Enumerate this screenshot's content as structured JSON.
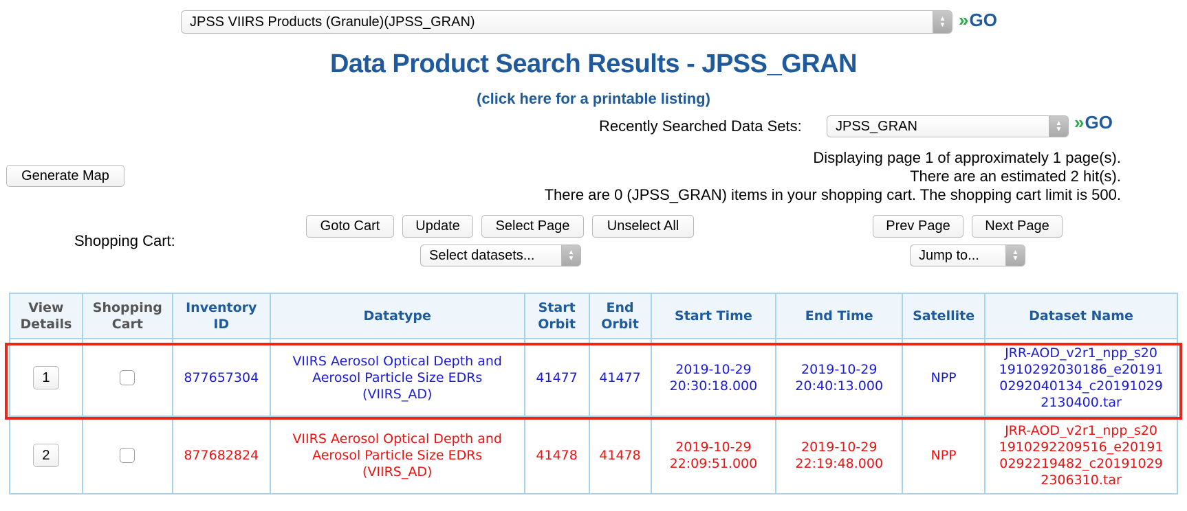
{
  "product_select": {
    "value": "JPSS VIIRS Products (Granule)(JPSS_GRAN)"
  },
  "go_label": "GO",
  "page_title": "Data Product Search Results - JPSS_GRAN",
  "printable_link": "(click here for a printable listing)",
  "recent": {
    "label": "Recently Searched Data Sets:",
    "value": "JPSS_GRAN"
  },
  "generate_map": "Generate Map",
  "info": {
    "line1": "Displaying page 1 of approximately 1 page(s).",
    "line2": "There are an estimated 2 hit(s).",
    "line3": "There are 0 (JPSS_GRAN) items in your shopping cart. The shopping cart limit is 500."
  },
  "cart": {
    "label": "Shopping Cart:",
    "goto": "Goto Cart",
    "update": "Update",
    "select_page": "Select Page",
    "unselect_all": "Unselect All",
    "select_datasets": "Select datasets..."
  },
  "paging": {
    "prev": "Prev Page",
    "next": "Next Page",
    "jump": "Jump to..."
  },
  "table": {
    "headers": {
      "view_details_1": "View",
      "view_details_2": "Details",
      "shopping_cart_1": "Shopping",
      "shopping_cart_2": "Cart",
      "inventory_id_1": "Inventory",
      "inventory_id_2": "ID",
      "datatype": "Datatype",
      "start_orbit_1": "Start",
      "start_orbit_2": "Orbit",
      "end_orbit_1": "End",
      "end_orbit_2": "Orbit",
      "start_time": "Start Time",
      "end_time": "End Time",
      "satellite": "Satellite",
      "dataset_name": "Dataset Name"
    },
    "rows": [
      {
        "num": "1",
        "inventory_id": "877657304",
        "datatype_1": "VIIRS Aerosol Optical Depth and",
        "datatype_2": "Aerosol Particle Size EDRs",
        "datatype_3": "(VIIRS_AD)",
        "start_orbit": "41477",
        "end_orbit": "41477",
        "start_date": "2019-10-29",
        "start_clock": "20:30:18.000",
        "end_date": "2019-10-29",
        "end_clock": "20:40:13.000",
        "satellite": "NPP",
        "dataset_1": "JRR-AOD_v2r1_npp_s20",
        "dataset_2": "1910292030186_e20191",
        "dataset_3": "0292040134_c20191029",
        "dataset_4": "2130400.tar"
      },
      {
        "num": "2",
        "inventory_id": "877682824",
        "datatype_1": "VIIRS Aerosol Optical Depth and",
        "datatype_2": "Aerosol Particle Size EDRs",
        "datatype_3": "(VIIRS_AD)",
        "start_orbit": "41478",
        "end_orbit": "41478",
        "start_date": "2019-10-29",
        "start_clock": "22:09:51.000",
        "end_date": "2019-10-29",
        "end_clock": "22:19:48.000",
        "satellite": "NPP",
        "dataset_1": "JRR-AOD_v2r1_npp_s20",
        "dataset_2": "1910292209516_e20191",
        "dataset_3": "0292219482_c20191029",
        "dataset_4": "2306310.tar"
      }
    ]
  },
  "colors": {
    "title": "#1f5a9c",
    "go_chevron": "#2aa84a",
    "row1": "#1a1adb",
    "row2": "#ee1111",
    "highlight": "#e8261b"
  }
}
